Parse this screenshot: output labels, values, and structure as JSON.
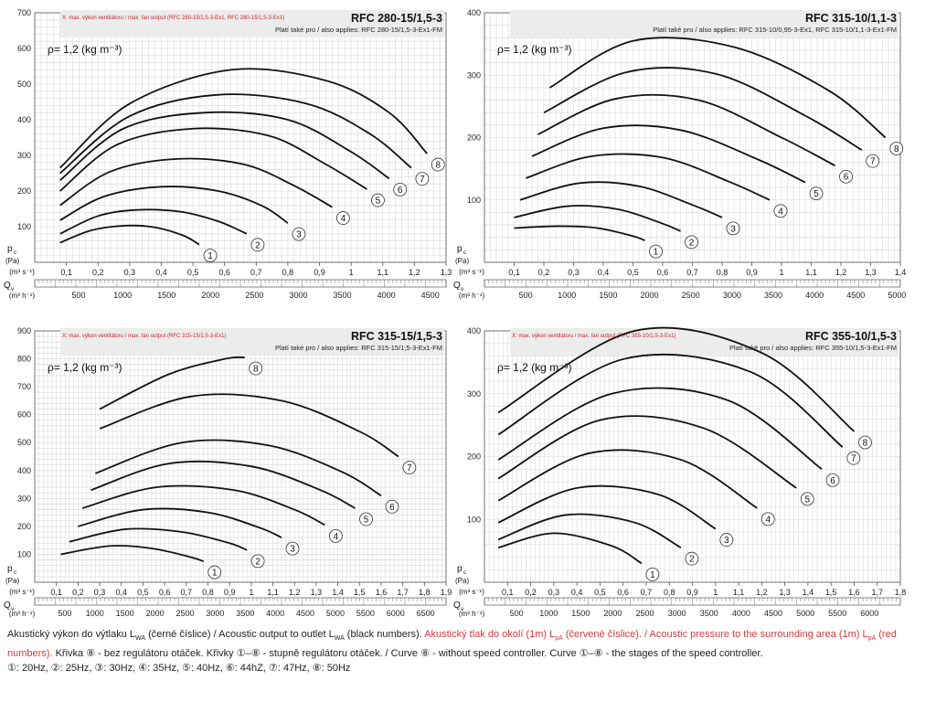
{
  "footer": {
    "line1_black": "Akustický výkon do výtlaku L",
    "line1_sub1": "WA",
    "line1_mid": " (černé číslice) / Acoustic output to outlet L",
    "line1_sub2": "WA",
    "line1_end": " (black numbers). ",
    "line1_red": "Akustický tlak do okolí (1m) L",
    "line1_red_sub": "pA",
    "line1_red_end": " (červené číslice). / Acoustic pressure to the surrounding area (1m) L",
    "line1_red_sub2": "pA",
    "line1_red_end2": " (red numbers).",
    "line2": " Křivka ⑧ - bez regulátoru otáček. Křivky ①–⑧ - stupně regulátoru otáček. / Curve ⑧ - without speed controller. Curve ①–⑧ - the stages of the speed controller.",
    "line3": "①: 20Hz, ②: 25Hz, ③: 30Hz, ④: 35Hz, ⑤: 40Hz, ⑥: 44hZ, ⑦: 47Hz, ⑧: 50Hz"
  },
  "colors": {
    "accent_red": "#c0262d",
    "curve": "#111111",
    "grid": "#d8d8d8"
  },
  "chart_data": [
    {
      "type": "line",
      "title": "RFC 280-15/1,5-3",
      "also_applies": "Platí také pro / also applies: RFC 280-15/1,5-3-Ex1-FM",
      "max_note": "X: max. výkon ventilátoru / max. fan output (RFC 280-15/1,5-3-Ex1, RFC 280-15/1,5-3-Ex1)",
      "density": "ρ= 1,2 (kg m⁻³)",
      "ylabel": "pc (Pa)",
      "xlabel": "Qv",
      "x_unit_top": "(m³ s⁻¹)",
      "x_unit_bottom": "(m³ h⁻¹)",
      "xlim": [
        0,
        1.3
      ],
      "ylim": [
        0,
        700
      ],
      "x_ticks": [
        0.1,
        0.2,
        0.3,
        0.4,
        0.5,
        0.6,
        0.7,
        0.8,
        0.9,
        1,
        1.1,
        1.2,
        1.3
      ],
      "x_ticks_labels": [
        "0,1",
        "0,2",
        "0,3",
        "0,4",
        "0,5",
        "0,6",
        "0,7",
        "0,8",
        "0,9",
        "1",
        "1,1",
        "1,2",
        "1,3"
      ],
      "y_ticks": [
        100,
        200,
        300,
        400,
        500,
        600,
        700
      ],
      "x2_ticks": [
        500,
        1000,
        1500,
        2000,
        2500,
        3000,
        3500,
        4000,
        4500
      ],
      "series": [
        {
          "name": "1",
          "x": [
            0.08,
            0.18,
            0.29,
            0.38,
            0.47,
            0.52
          ],
          "y": [
            55,
            90,
            103,
            98,
            75,
            50
          ]
        },
        {
          "name": "2",
          "x": [
            0.08,
            0.2,
            0.32,
            0.46,
            0.58,
            0.67
          ],
          "y": [
            80,
            130,
            147,
            142,
            115,
            80
          ]
        },
        {
          "name": "3",
          "x": [
            0.08,
            0.22,
            0.4,
            0.58,
            0.72,
            0.8
          ],
          "y": [
            118,
            185,
            212,
            200,
            158,
            110
          ]
        },
        {
          "name": "4",
          "x": [
            0.08,
            0.24,
            0.45,
            0.66,
            0.82,
            0.94
          ],
          "y": [
            160,
            255,
            290,
            275,
            215,
            155
          ]
        },
        {
          "name": "5",
          "x": [
            0.08,
            0.26,
            0.5,
            0.74,
            0.92,
            1.05
          ],
          "y": [
            200,
            330,
            375,
            355,
            275,
            205
          ]
        },
        {
          "name": "6",
          "x": [
            0.08,
            0.28,
            0.54,
            0.8,
            1.0,
            1.12
          ],
          "y": [
            230,
            375,
            420,
            400,
            310,
            235
          ]
        },
        {
          "name": "7",
          "x": [
            0.08,
            0.3,
            0.58,
            0.86,
            1.06,
            1.19
          ],
          "y": [
            250,
            410,
            470,
            445,
            360,
            265
          ]
        },
        {
          "name": "8",
          "x": [
            0.08,
            0.3,
            0.62,
            0.92,
            1.12,
            1.24
          ],
          "y": [
            265,
            445,
            540,
            510,
            420,
            305
          ]
        }
      ]
    },
    {
      "type": "line",
      "title": "RFC 315-10/1,1-3",
      "also_applies": "Platí také pro / also applies: RFC 315-10/0,95-3-Ex1, RFC 315-10/1,1-3-Ex1-FM",
      "max_note": "",
      "density": "ρ= 1,2 (kg m⁻³)",
      "ylabel": "pc (Pa)",
      "xlabel": "Qv",
      "x_unit_top": "(m³ s⁻¹)",
      "x_unit_bottom": "(m³ h⁻¹)",
      "xlim": [
        0,
        1.4
      ],
      "ylim": [
        0,
        400
      ],
      "x_ticks": [
        0.1,
        0.2,
        0.3,
        0.4,
        0.5,
        0.6,
        0.7,
        0.8,
        0.9,
        1,
        1.1,
        1.2,
        1.3,
        1.4
      ],
      "x_ticks_labels": [
        "0,1",
        "0,2",
        "0,3",
        "0,4",
        "0,5",
        "0,6",
        "0,7",
        "0,8",
        "0,9",
        "1",
        "1,1",
        "1,2",
        "1,3",
        "1,4"
      ],
      "y_ticks": [
        100,
        200,
        300,
        400
      ],
      "x2_ticks": [
        500,
        1000,
        1500,
        2000,
        2500,
        3000,
        3500,
        4000,
        4500,
        5000
      ],
      "series": [
        {
          "name": "1",
          "x": [
            0.1,
            0.25,
            0.38,
            0.5,
            0.54
          ],
          "y": [
            55,
            58,
            55,
            42,
            35
          ]
        },
        {
          "name": "2",
          "x": [
            0.1,
            0.28,
            0.45,
            0.6,
            0.66
          ],
          "y": [
            72,
            90,
            85,
            62,
            50
          ]
        },
        {
          "name": "3",
          "x": [
            0.12,
            0.32,
            0.52,
            0.7,
            0.8
          ],
          "y": [
            100,
            127,
            122,
            92,
            72
          ]
        },
        {
          "name": "4",
          "x": [
            0.14,
            0.36,
            0.6,
            0.82,
            0.96
          ],
          "y": [
            135,
            170,
            168,
            130,
            100
          ]
        },
        {
          "name": "5",
          "x": [
            0.16,
            0.4,
            0.66,
            0.92,
            1.08
          ],
          "y": [
            170,
            215,
            212,
            165,
            128
          ]
        },
        {
          "name": "6",
          "x": [
            0.18,
            0.44,
            0.72,
            1.0,
            1.18
          ],
          "y": [
            205,
            262,
            260,
            200,
            155
          ]
        },
        {
          "name": "7",
          "x": [
            0.2,
            0.48,
            0.78,
            1.08,
            1.27
          ],
          "y": [
            240,
            305,
            302,
            235,
            180
          ]
        },
        {
          "name": "8",
          "x": [
            0.22,
            0.5,
            0.84,
            1.16,
            1.35
          ],
          "y": [
            280,
            355,
            345,
            275,
            200
          ]
        }
      ]
    },
    {
      "type": "line",
      "title": "RFC 315-15/1,5-3",
      "also_applies": "Platí také pro / also applies: RFC 315-15/1,5-3-Ex1-FM",
      "max_note": "X: max. výkon ventilátoru / max. fan output (RFC 315-15/1,5-3-Ex1)",
      "density": "ρ= 1,2 (kg m⁻³)",
      "ylabel": "pc (Pa)",
      "xlabel": "Qv",
      "x_unit_top": "(m³ s⁻¹)",
      "x_unit_bottom": "(m³ h⁻¹)",
      "xlim": [
        0,
        1.9
      ],
      "ylim": [
        0,
        900
      ],
      "x_ticks": [
        0.1,
        0.2,
        0.3,
        0.4,
        0.5,
        0.6,
        0.7,
        0.8,
        0.9,
        1,
        1.1,
        1.2,
        1.3,
        1.4,
        1.5,
        1.6,
        1.7,
        1.8,
        1.9
      ],
      "x_ticks_labels": [
        "0,1",
        "0,2",
        "0,3",
        "0,4",
        "0,5",
        "0,6",
        "0,7",
        "0,8",
        "0,9",
        "1",
        "1,1",
        "1,2",
        "1,3",
        "1,4",
        "1,5",
        "1,6",
        "1,7",
        "1,8",
        "1,9"
      ],
      "y_ticks": [
        100,
        200,
        300,
        400,
        500,
        600,
        700,
        800,
        900
      ],
      "x2_ticks": [
        500,
        1000,
        1500,
        2000,
        2500,
        3000,
        3500,
        4000,
        4500,
        5000,
        5500,
        6000,
        6500
      ],
      "series": [
        {
          "name": "1",
          "x": [
            0.12,
            0.35,
            0.55,
            0.72,
            0.78
          ],
          "y": [
            100,
            130,
            120,
            90,
            75
          ]
        },
        {
          "name": "2",
          "x": [
            0.16,
            0.42,
            0.68,
            0.9,
            0.98
          ],
          "y": [
            145,
            190,
            180,
            140,
            115
          ]
        },
        {
          "name": "3",
          "x": [
            0.2,
            0.5,
            0.8,
            1.04,
            1.14
          ],
          "y": [
            200,
            260,
            250,
            195,
            160
          ]
        },
        {
          "name": "4",
          "x": [
            0.22,
            0.56,
            0.92,
            1.2,
            1.34
          ],
          "y": [
            265,
            340,
            330,
            260,
            205
          ]
        },
        {
          "name": "5",
          "x": [
            0.26,
            0.62,
            1.0,
            1.32,
            1.48
          ],
          "y": [
            330,
            425,
            415,
            330,
            265
          ]
        },
        {
          "name": "6",
          "x": [
            0.28,
            0.68,
            1.08,
            1.42,
            1.6
          ],
          "y": [
            390,
            500,
            490,
            395,
            310
          ]
        },
        {
          "name": "7",
          "x": [
            0.3,
            0.72,
            1.14,
            1.5,
            1.68
          ],
          "y": [
            550,
            665,
            650,
            540,
            450
          ]
        },
        {
          "name": "8",
          "x": [
            0.3,
            0.62,
            0.88,
            0.97
          ],
          "y": [
            620,
            745,
            800,
            805
          ]
        }
      ]
    },
    {
      "type": "line",
      "title": "RFC 355-10/1,5-3",
      "also_applies": "Platí také pro / also applies: RFC 355-10/1,5-3-Ex1-FM",
      "max_note": "X: max. výkon ventilátoru / max. fan output (RFC 355-10/1,5-3-Ex1)",
      "density": "ρ= 1,2 (kg m⁻³)",
      "ylabel": "pc (Pa)",
      "xlabel": "Qv",
      "x_unit_top": "(m³ s⁻¹)",
      "x_unit_bottom": "(m³ h⁻¹)",
      "xlim": [
        0,
        1.8
      ],
      "ylim": [
        0,
        400
      ],
      "x_ticks": [
        0.1,
        0.2,
        0.3,
        0.4,
        0.5,
        0.6,
        0.7,
        0.8,
        0.9,
        1,
        1.1,
        1.2,
        1.3,
        1.4,
        1.5,
        1.6,
        1.7,
        1.8
      ],
      "x_ticks_labels": [
        "0,1",
        "0,2",
        "0,3",
        "0,4",
        "0,5",
        "0,6",
        "0,7",
        "0,8",
        "0,9",
        "1",
        "1,1",
        "1,2",
        "1,3",
        "1,4",
        "1,5",
        "1,6",
        "1,7",
        "1,8"
      ],
      "y_ticks": [
        100,
        200,
        300,
        400
      ],
      "x2_ticks": [
        500,
        1000,
        1500,
        2000,
        2500,
        3000,
        3500,
        4000,
        4500,
        5000,
        5500,
        6000
      ],
      "series": [
        {
          "name": "1",
          "x": [
            0.06,
            0.3,
            0.55,
            0.68
          ],
          "y": [
            55,
            78,
            58,
            30
          ]
        },
        {
          "name": "2",
          "x": [
            0.06,
            0.35,
            0.65,
            0.85
          ],
          "y": [
            68,
            107,
            95,
            55
          ]
        },
        {
          "name": "3",
          "x": [
            0.06,
            0.4,
            0.75,
            1.0
          ],
          "y": [
            95,
            150,
            140,
            85
          ]
        },
        {
          "name": "4",
          "x": [
            0.06,
            0.45,
            0.85,
            1.18
          ],
          "y": [
            130,
            205,
            195,
            118
          ]
        },
        {
          "name": "5",
          "x": [
            0.06,
            0.5,
            0.95,
            1.35
          ],
          "y": [
            165,
            258,
            245,
            150
          ]
        },
        {
          "name": "6",
          "x": [
            0.06,
            0.55,
            1.05,
            1.46
          ],
          "y": [
            195,
            300,
            290,
            180
          ]
        },
        {
          "name": "7",
          "x": [
            0.06,
            0.6,
            1.15,
            1.55
          ],
          "y": [
            235,
            355,
            335,
            215
          ]
        },
        {
          "name": "8",
          "x": [
            0.06,
            0.65,
            1.2,
            1.6
          ],
          "y": [
            270,
            400,
            365,
            240
          ]
        }
      ]
    }
  ]
}
